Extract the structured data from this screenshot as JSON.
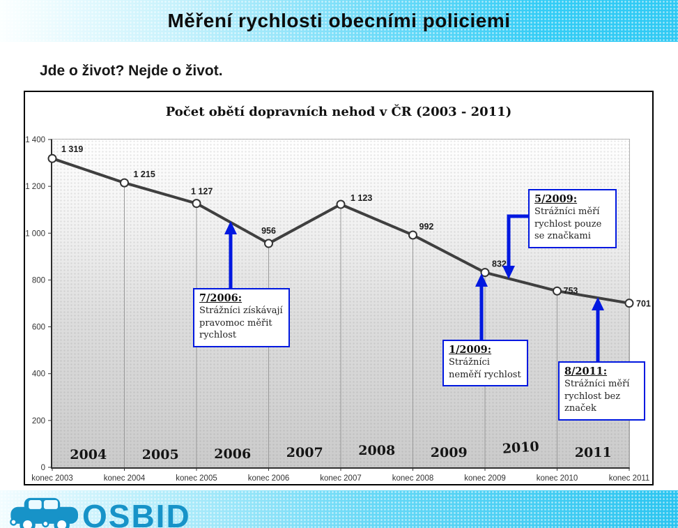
{
  "header": {
    "title": "Měření rychlosti obecními policiemi"
  },
  "subtitle": "Jde o život? Nejde o život.",
  "chart_data": {
    "type": "line",
    "title": "Počet obětí dopravních nehod v ČR (2003 - 2011)",
    "x": [
      "konec 2003",
      "konec 2004",
      "konec 2005",
      "konec 2006",
      "konec 2007",
      "konec 2008",
      "konec 2009",
      "konec 2010",
      "konec 2011"
    ],
    "values": [
      1319,
      1215,
      1127,
      956,
      1123,
      992,
      832,
      753,
      701
    ],
    "point_labels": [
      "1 319",
      "1 215",
      "1 127",
      "956",
      "1 123",
      "992",
      "832",
      "753",
      "701"
    ],
    "year_bands": [
      "2004",
      "2005",
      "2006",
      "2007",
      "2008",
      "2009",
      "2010",
      "2011"
    ],
    "xlabel": "",
    "ylabel": "",
    "ylim": [
      0,
      1400
    ],
    "yticks": [
      0,
      200,
      400,
      600,
      800,
      1000,
      1200,
      1400
    ],
    "grid": "vertical drop lines from points, dotted top border",
    "legend": "none",
    "series_color": "#3f3f3f",
    "marker": "open circle",
    "annotation_color": "#0018e0"
  },
  "annotations": [
    {
      "title": "7/2006:",
      "body": "Strážníci získávají pravomoc měřit rychlost"
    },
    {
      "title": "1/2009:",
      "body": "Strážníci neměří rychlost"
    },
    {
      "title": "5/2009:",
      "body": "Strážníci měří rychlost pouze se značkami"
    },
    {
      "title": "8/2011:",
      "body": "Strážníci měří rychlost bez značek"
    }
  ],
  "footer": {
    "brand": "OSBID"
  },
  "colors": {
    "banner_cyan": "#33ccf5",
    "annotation_blue": "#0018e0",
    "brand_teal": "#1793c8",
    "series_gray": "#3f3f3f"
  }
}
